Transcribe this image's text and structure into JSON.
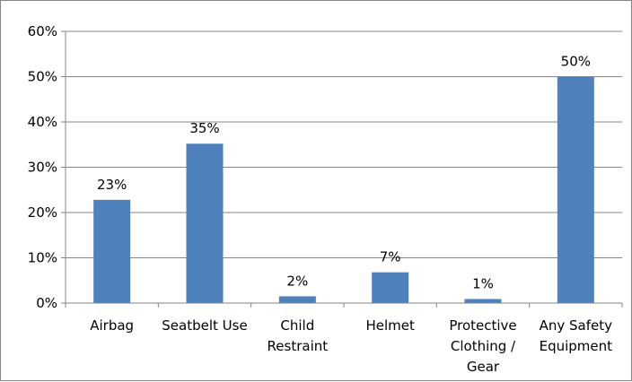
{
  "chart_data": {
    "type": "bar",
    "categories": [
      [
        "Airbag"
      ],
      [
        "Seatbelt Use"
      ],
      [
        "Child",
        "Restraint"
      ],
      [
        "Helmet"
      ],
      [
        "Protective",
        "Clothing /",
        "Gear"
      ],
      [
        "Any Safety",
        "Equipment"
      ]
    ],
    "values": [
      23,
      35,
      2,
      7,
      1,
      50
    ],
    "plot_values": [
      22.8,
      35.2,
      1.5,
      6.8,
      0.9,
      50.0
    ],
    "data_labels": [
      "23%",
      "35%",
      "2%",
      "7%",
      "1%",
      "50%"
    ],
    "yticks": [
      "0%",
      "10%",
      "20%",
      "30%",
      "40%",
      "50%",
      "60%"
    ],
    "ylim": [
      0,
      60
    ],
    "ytick_step": 10,
    "grid": true,
    "legend": "none",
    "title": "",
    "xlabel": "",
    "ylabel": "",
    "colors": {
      "bar": "#4f81bd",
      "grid": "#868686",
      "axis": "#868686",
      "text": "#000000"
    }
  }
}
